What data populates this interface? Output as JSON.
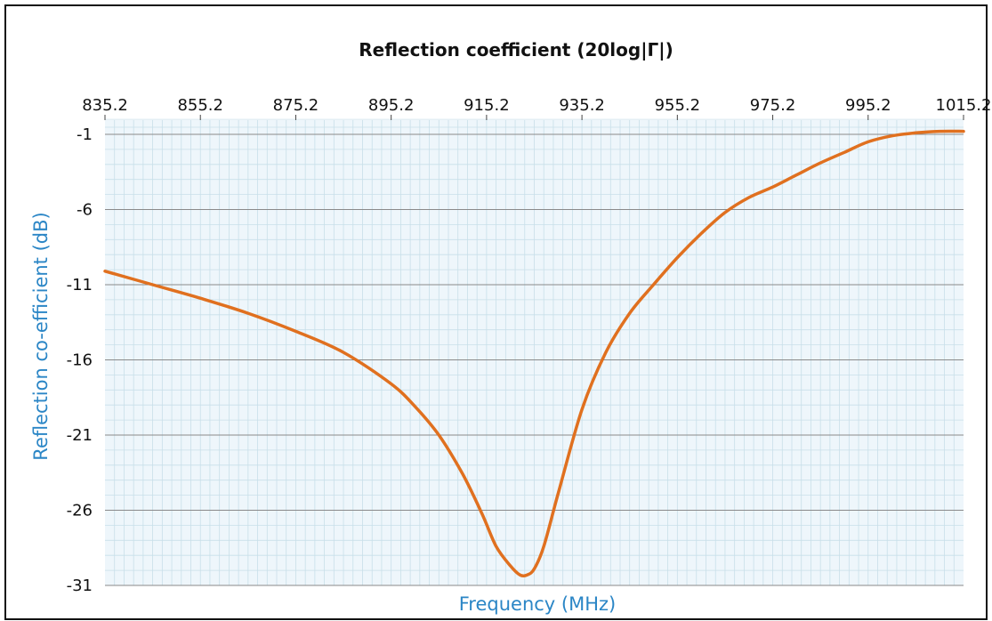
{
  "chart_data": {
    "type": "line",
    "title": "Reflection coefficient (20log|Γ|)",
    "xlabel": "Frequency (MHz)",
    "ylabel": "Reflection co-efficient (dB)",
    "x_axis_position": "top",
    "xlim": [
      835.2,
      1015.2
    ],
    "ylim": [
      -31,
      -1
    ],
    "x_ticks": [
      "835.2",
      "855.2",
      "875.2",
      "895.2",
      "915.2",
      "935.2",
      "955.2",
      "975.2",
      "995.2",
      "1015.2"
    ],
    "y_ticks": [
      "-1",
      "-6",
      "-11",
      "-16",
      "-21",
      "-26",
      "-31"
    ],
    "grid": true,
    "series": [
      {
        "x": [
          835.2,
          845.2,
          855.2,
          865.2,
          875.2,
          885.2,
          895.2,
          900.2,
          905.2,
          910.2,
          914.2,
          917.2,
          920.2,
          922.2,
          923.7,
          925.2,
          927.2,
          930.2,
          935.2,
          940.2,
          945.2,
          950.2,
          955.2,
          960.2,
          965.2,
          970.2,
          975.2,
          980.2,
          985.2,
          990.2,
          995.2,
          1000.2,
          1005.2,
          1010.2,
          1015.2
        ],
        "y": [
          -10.1,
          -11.0,
          -11.9,
          -12.9,
          -14.1,
          -15.5,
          -17.6,
          -19.1,
          -21.0,
          -23.6,
          -26.2,
          -28.4,
          -29.7,
          -30.3,
          -30.3,
          -29.9,
          -28.4,
          -24.9,
          -19.3,
          -15.5,
          -12.9,
          -11.0,
          -9.2,
          -7.6,
          -6.2,
          -5.2,
          -4.5,
          -3.7,
          -2.9,
          -2.2,
          -1.5,
          -1.1,
          -0.9,
          -0.8,
          -0.8
        ]
      }
    ]
  },
  "colors": {
    "line": "#e0701f",
    "axis_label": "#2b86c6",
    "plot_background": "#eef6fb",
    "minor_grid": "#c8dfe9",
    "major_grid": "#8a8a8a"
  }
}
